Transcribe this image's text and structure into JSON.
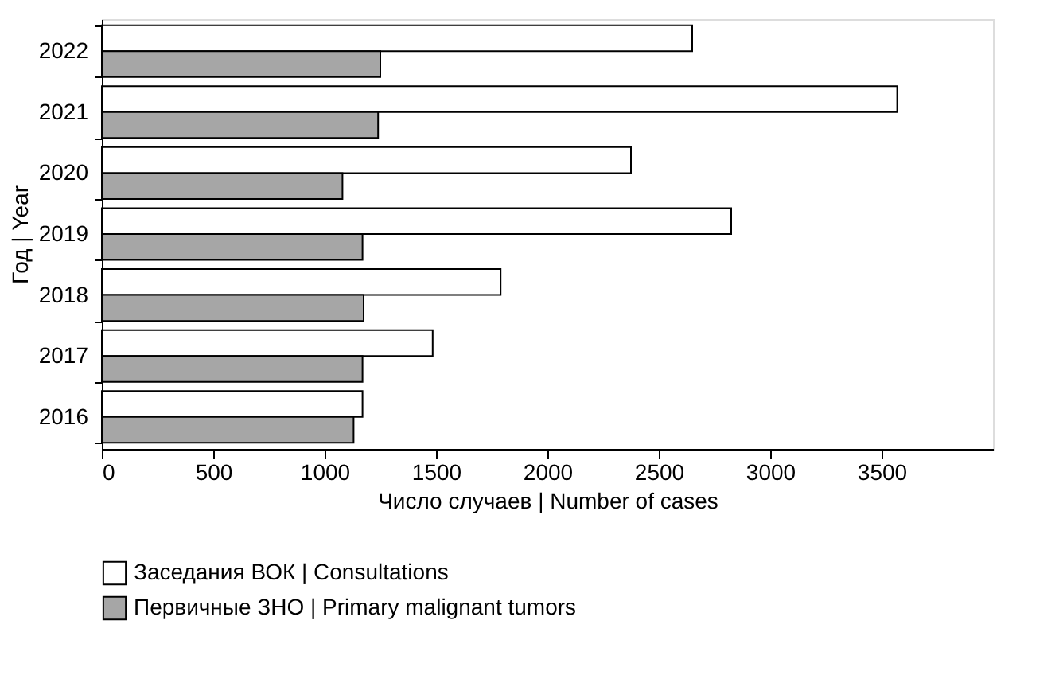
{
  "chart_data": {
    "type": "bar",
    "orientation": "horizontal",
    "categories": [
      "2022",
      "2021",
      "2020",
      "2019",
      "2018",
      "2017",
      "2016"
    ],
    "series": [
      {
        "name": "Заседания ВОК | Consultations",
        "color": "#ffffff",
        "values": [
          2650,
          3570,
          2375,
          2825,
          1790,
          1485,
          1170
        ]
      },
      {
        "name": "Первичные ЗНО | Primary malignant tumors",
        "color": "#a6a6a6",
        "values": [
          1250,
          1240,
          1080,
          1170,
          1175,
          1170,
          1130
        ]
      }
    ],
    "xlabel": "Число случаев | Number of cases",
    "ylabel": "Год | Year",
    "xlim": [
      0,
      4000
    ],
    "xticks": [
      0,
      500,
      1000,
      1500,
      2000,
      2500,
      3000,
      3500
    ],
    "grid": false,
    "legend": "bottom"
  }
}
